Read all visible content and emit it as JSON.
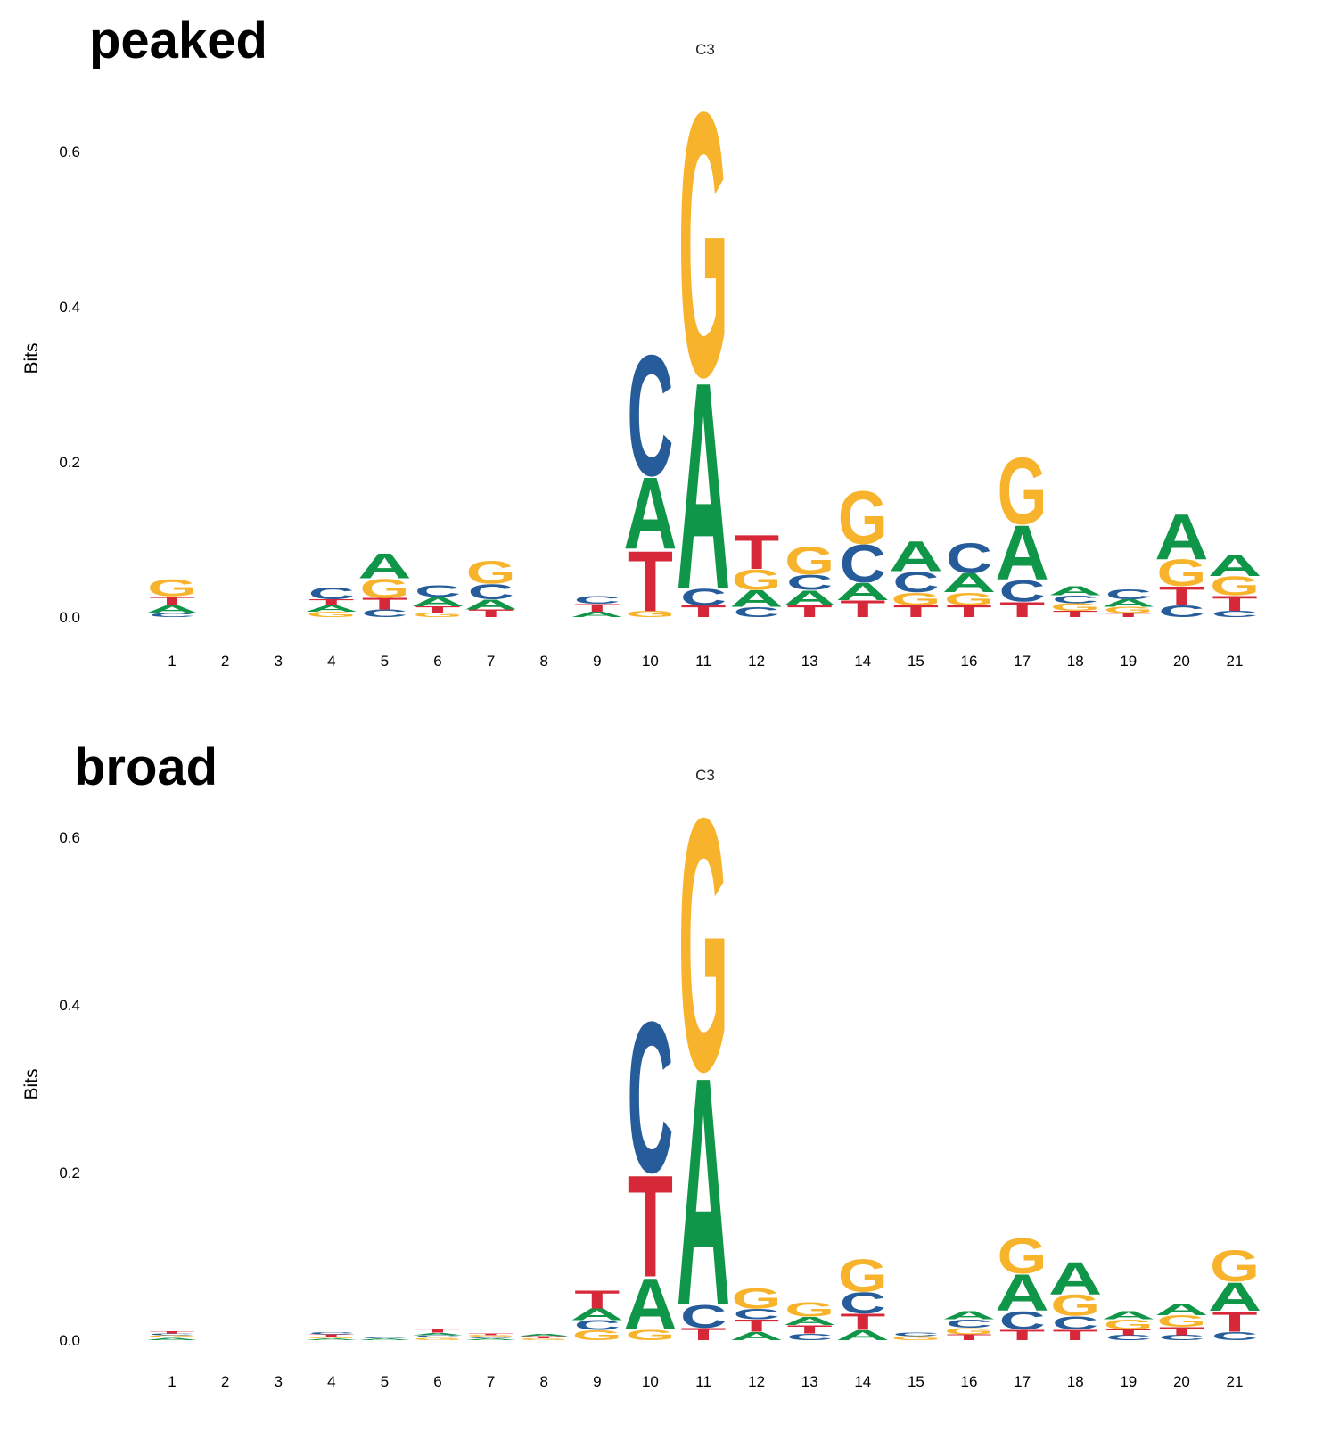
{
  "colors": {
    "A": "#109648",
    "C": "#255C99",
    "G": "#F7B32B",
    "T": "#D62839"
  },
  "chart_data": [
    {
      "type": "sequence-logo",
      "panel_label": "peaked",
      "title": "C3",
      "ylabel": "Bits",
      "ylim": [
        0,
        0.67
      ],
      "yticks": [
        "0.0",
        "0.2",
        "0.4",
        "0.6"
      ],
      "ytick_values": [
        0,
        0.2,
        0.4,
        0.6
      ],
      "positions": [
        "1",
        "2",
        "3",
        "4",
        "5",
        "6",
        "7",
        "8",
        "9",
        "10",
        "11",
        "12",
        "13",
        "14",
        "15",
        "16",
        "17",
        "18",
        "19",
        "20",
        "21"
      ],
      "stacks": [
        [
          [
            "C",
            0.005
          ],
          [
            "A",
            0.01
          ],
          [
            "T",
            0.012
          ],
          [
            "G",
            0.022
          ]
        ],
        [],
        [],
        [
          [
            "G",
            0.007
          ],
          [
            "A",
            0.008
          ],
          [
            "T",
            0.008
          ],
          [
            "C",
            0.015
          ]
        ],
        [
          [
            "C",
            0.01
          ],
          [
            "T",
            0.015
          ],
          [
            "G",
            0.025
          ],
          [
            "A",
            0.033
          ]
        ],
        [
          [
            "G",
            0.006
          ],
          [
            "T",
            0.008
          ],
          [
            "A",
            0.012
          ],
          [
            "C",
            0.015
          ]
        ],
        [
          [
            "T",
            0.01
          ],
          [
            "A",
            0.013
          ],
          [
            "C",
            0.02
          ],
          [
            "G",
            0.03
          ]
        ],
        [],
        [
          [
            "A",
            0.007
          ],
          [
            "T",
            0.01
          ],
          [
            "C",
            0.01
          ]
        ],
        [
          [
            "G",
            0.008
          ],
          [
            "T",
            0.08
          ],
          [
            "A",
            0.095
          ],
          [
            "C",
            0.16
          ]
        ],
        [
          [
            "T",
            0.015
          ],
          [
            "C",
            0.022
          ],
          [
            "A",
            0.275
          ],
          [
            "G",
            0.35
          ]
        ],
        [
          [
            "C",
            0.013
          ],
          [
            "A",
            0.022
          ],
          [
            "G",
            0.027
          ],
          [
            "T",
            0.045
          ]
        ],
        [
          [
            "T",
            0.015
          ],
          [
            "A",
            0.02
          ],
          [
            "C",
            0.02
          ],
          [
            "G",
            0.037
          ]
        ],
        [
          [
            "T",
            0.022
          ],
          [
            "A",
            0.023
          ],
          [
            "C",
            0.05
          ],
          [
            "G",
            0.07
          ]
        ],
        [
          [
            "T",
            0.015
          ],
          [
            "G",
            0.017
          ],
          [
            "C",
            0.027
          ],
          [
            "A",
            0.04
          ]
        ],
        [
          [
            "T",
            0.015
          ],
          [
            "G",
            0.017
          ],
          [
            "A",
            0.025
          ],
          [
            "C",
            0.04
          ]
        ],
        [
          [
            "T",
            0.02
          ],
          [
            "C",
            0.028
          ],
          [
            "A",
            0.072
          ],
          [
            "G",
            0.088
          ]
        ],
        [
          [
            "T",
            0.008
          ],
          [
            "G",
            0.01
          ],
          [
            "C",
            0.01
          ],
          [
            "A",
            0.012
          ]
        ],
        [
          [
            "T",
            0.005
          ],
          [
            "G",
            0.008
          ],
          [
            "A",
            0.01
          ],
          [
            "C",
            0.013
          ]
        ],
        [
          [
            "C",
            0.015
          ],
          [
            "T",
            0.025
          ],
          [
            "G",
            0.035
          ],
          [
            "A",
            0.06
          ]
        ],
        [
          [
            "C",
            0.008
          ],
          [
            "T",
            0.02
          ],
          [
            "G",
            0.025
          ],
          [
            "A",
            0.028
          ]
        ]
      ]
    },
    {
      "type": "sequence-logo",
      "panel_label": "broad",
      "title": "C3",
      "ylabel": "Bits",
      "ylim": [
        0,
        0.67
      ],
      "yticks": [
        "0.0",
        "0.2",
        "0.4",
        "0.6"
      ],
      "ytick_values": [
        0,
        0.2,
        0.4,
        0.6
      ],
      "positions": [
        "1",
        "2",
        "3",
        "4",
        "5",
        "6",
        "7",
        "8",
        "9",
        "10",
        "11",
        "12",
        "13",
        "14",
        "15",
        "16",
        "17",
        "18",
        "19",
        "20",
        "21"
      ],
      "stacks": [
        [
          [
            "A",
            0.003
          ],
          [
            "G",
            0.003
          ],
          [
            "C",
            0.002
          ],
          [
            "T",
            0.003
          ]
        ],
        [],
        [],
        [
          [
            "A",
            0.002
          ],
          [
            "G",
            0.002
          ],
          [
            "T",
            0.003
          ],
          [
            "C",
            0.003
          ]
        ],
        [
          [
            "A",
            0.002
          ],
          [
            "C",
            0.002
          ]
        ],
        [
          [
            "G",
            0.003
          ],
          [
            "C",
            0.003
          ],
          [
            "A",
            0.003
          ],
          [
            "T",
            0.004
          ]
        ],
        [
          [
            "A",
            0.002
          ],
          [
            "C",
            0.002
          ],
          [
            "G",
            0.002
          ],
          [
            "T",
            0.002
          ]
        ],
        [
          [
            "G",
            0.002
          ],
          [
            "T",
            0.003
          ],
          [
            "A",
            0.003
          ]
        ],
        [
          [
            "G",
            0.012
          ],
          [
            "C",
            0.012
          ],
          [
            "A",
            0.014
          ],
          [
            "T",
            0.022
          ]
        ],
        [
          [
            "G",
            0.013
          ],
          [
            "A",
            0.063
          ],
          [
            "T",
            0.125
          ],
          [
            "C",
            0.185
          ]
        ],
        [
          [
            "T",
            0.015
          ],
          [
            "C",
            0.028
          ],
          [
            "A",
            0.28
          ],
          [
            "G",
            0.31
          ]
        ],
        [
          [
            "A",
            0.01
          ],
          [
            "T",
            0.015
          ],
          [
            "C",
            0.013
          ],
          [
            "G",
            0.025
          ]
        ],
        [
          [
            "C",
            0.008
          ],
          [
            "T",
            0.01
          ],
          [
            "A",
            0.01
          ],
          [
            "G",
            0.018
          ]
        ],
        [
          [
            "A",
            0.012
          ],
          [
            "T",
            0.02
          ],
          [
            "C",
            0.026
          ],
          [
            "G",
            0.04
          ]
        ],
        [
          [
            "G",
            0.005
          ],
          [
            "C",
            0.004
          ]
        ],
        [
          [
            "T",
            0.007
          ],
          [
            "G",
            0.008
          ],
          [
            "C",
            0.01
          ],
          [
            "A",
            0.01
          ]
        ],
        [
          [
            "T",
            0.013
          ],
          [
            "C",
            0.022
          ],
          [
            "A",
            0.045
          ],
          [
            "G",
            0.043
          ]
        ],
        [
          [
            "T",
            0.013
          ],
          [
            "C",
            0.016
          ],
          [
            "G",
            0.026
          ],
          [
            "A",
            0.04
          ]
        ],
        [
          [
            "C",
            0.006
          ],
          [
            "T",
            0.007
          ],
          [
            "G",
            0.012
          ],
          [
            "A",
            0.01
          ]
        ],
        [
          [
            "C",
            0.006
          ],
          [
            "T",
            0.01
          ],
          [
            "G",
            0.014
          ],
          [
            "A",
            0.014
          ]
        ],
        [
          [
            "C",
            0.01
          ],
          [
            "T",
            0.025
          ],
          [
            "A",
            0.035
          ],
          [
            "G",
            0.038
          ]
        ]
      ]
    }
  ]
}
